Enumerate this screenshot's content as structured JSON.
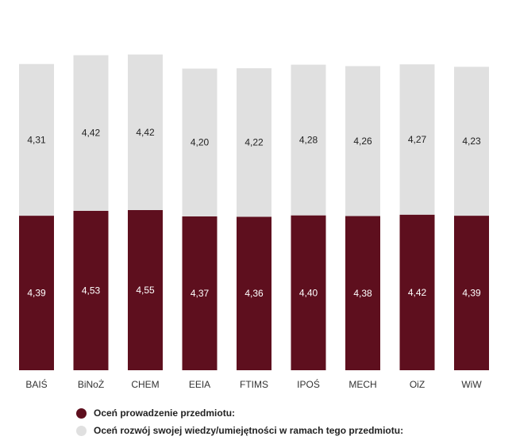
{
  "chart_data": {
    "type": "bar",
    "stacked": true,
    "categories": [
      "BAIŚ",
      "BiNoŻ",
      "CHEM",
      "EEIA",
      "FTIMS",
      "IPOŚ",
      "MECH",
      "OiZ",
      "WiW"
    ],
    "series": [
      {
        "name": "Oceń prowadzenie przedmiotu:",
        "color": "#5e0f1e",
        "values": [
          4.39,
          4.53,
          4.55,
          4.37,
          4.36,
          4.4,
          4.38,
          4.42,
          4.39
        ],
        "labels": [
          "4,39",
          "4,53",
          "4,55",
          "4,37",
          "4,36",
          "4,40",
          "4,38",
          "4,42",
          "4,39"
        ],
        "label_color": "#ffffff"
      },
      {
        "name": "Oceń rozwój swojej wiedzy/umiejętności w ramach tego przedmiotu:",
        "color": "#e0e0e0",
        "values": [
          4.31,
          4.42,
          4.42,
          4.2,
          4.22,
          4.28,
          4.26,
          4.27,
          4.23
        ],
        "labels": [
          "4,31",
          "4,42",
          "4,42",
          "4,20",
          "4,22",
          "4,28",
          "4,26",
          "4,27",
          "4,23"
        ],
        "label_color": "#222222"
      }
    ],
    "axis_visible": false,
    "grid": false,
    "legend_position": "bottom-left"
  }
}
